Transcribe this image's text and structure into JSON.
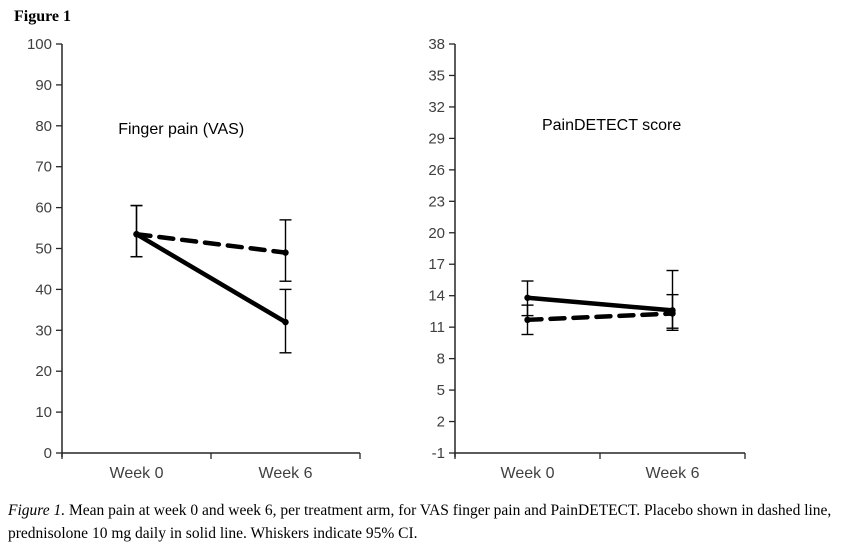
{
  "heading": "Figure 1",
  "caption": {
    "label": "Figure 1.",
    "text": " Mean pain at week 0 and week 6, per treatment arm, for VAS finger pain and PainDETECT. Placebo shown in dashed line, prednisolone 10 mg daily in solid line. Whiskers indicate 95% CI."
  },
  "colors": {
    "series_line": "#000000",
    "axis": "#262626",
    "tick_label": "#404040",
    "background": "#ffffff"
  },
  "chart_data": [
    {
      "type": "line",
      "title": "Finger pain (VAS)",
      "x_categories": [
        "Week 0",
        "Week 6"
      ],
      "ylim": [
        0,
        100
      ],
      "ytick_step": 10,
      "grid": false,
      "legend": "none",
      "title_x_frac": 0.4,
      "title_y_frac": 0.22,
      "series": [
        {
          "name": "Prednisolone 10 mg daily",
          "style": "solid",
          "values": [
            53.5,
            32
          ],
          "ci_low": [
            48,
            24.5
          ],
          "ci_high": [
            60.5,
            40
          ]
        },
        {
          "name": "Placebo",
          "style": "dashed",
          "values": [
            53.5,
            49
          ],
          "ci_low": [
            48,
            42
          ],
          "ci_high": [
            60.5,
            57
          ]
        }
      ]
    },
    {
      "type": "line",
      "title": "PainDETECT score",
      "x_categories": [
        "Week 0",
        "Week 6"
      ],
      "ylim": [
        -1,
        38
      ],
      "ytick_step": 3,
      "grid": false,
      "legend": "none",
      "title_x_frac": 0.54,
      "title_y_frac": 0.21,
      "series": [
        {
          "name": "Prednisolone 10 mg daily",
          "style": "solid",
          "values": [
            13.8,
            12.6
          ],
          "ci_low": [
            12.1,
            10.9
          ],
          "ci_high": [
            15.4,
            16.4
          ]
        },
        {
          "name": "Placebo",
          "style": "dashed",
          "values": [
            11.7,
            12.3
          ],
          "ci_low": [
            10.3,
            10.7
          ],
          "ci_high": [
            13.1,
            14.1
          ]
        }
      ]
    }
  ]
}
